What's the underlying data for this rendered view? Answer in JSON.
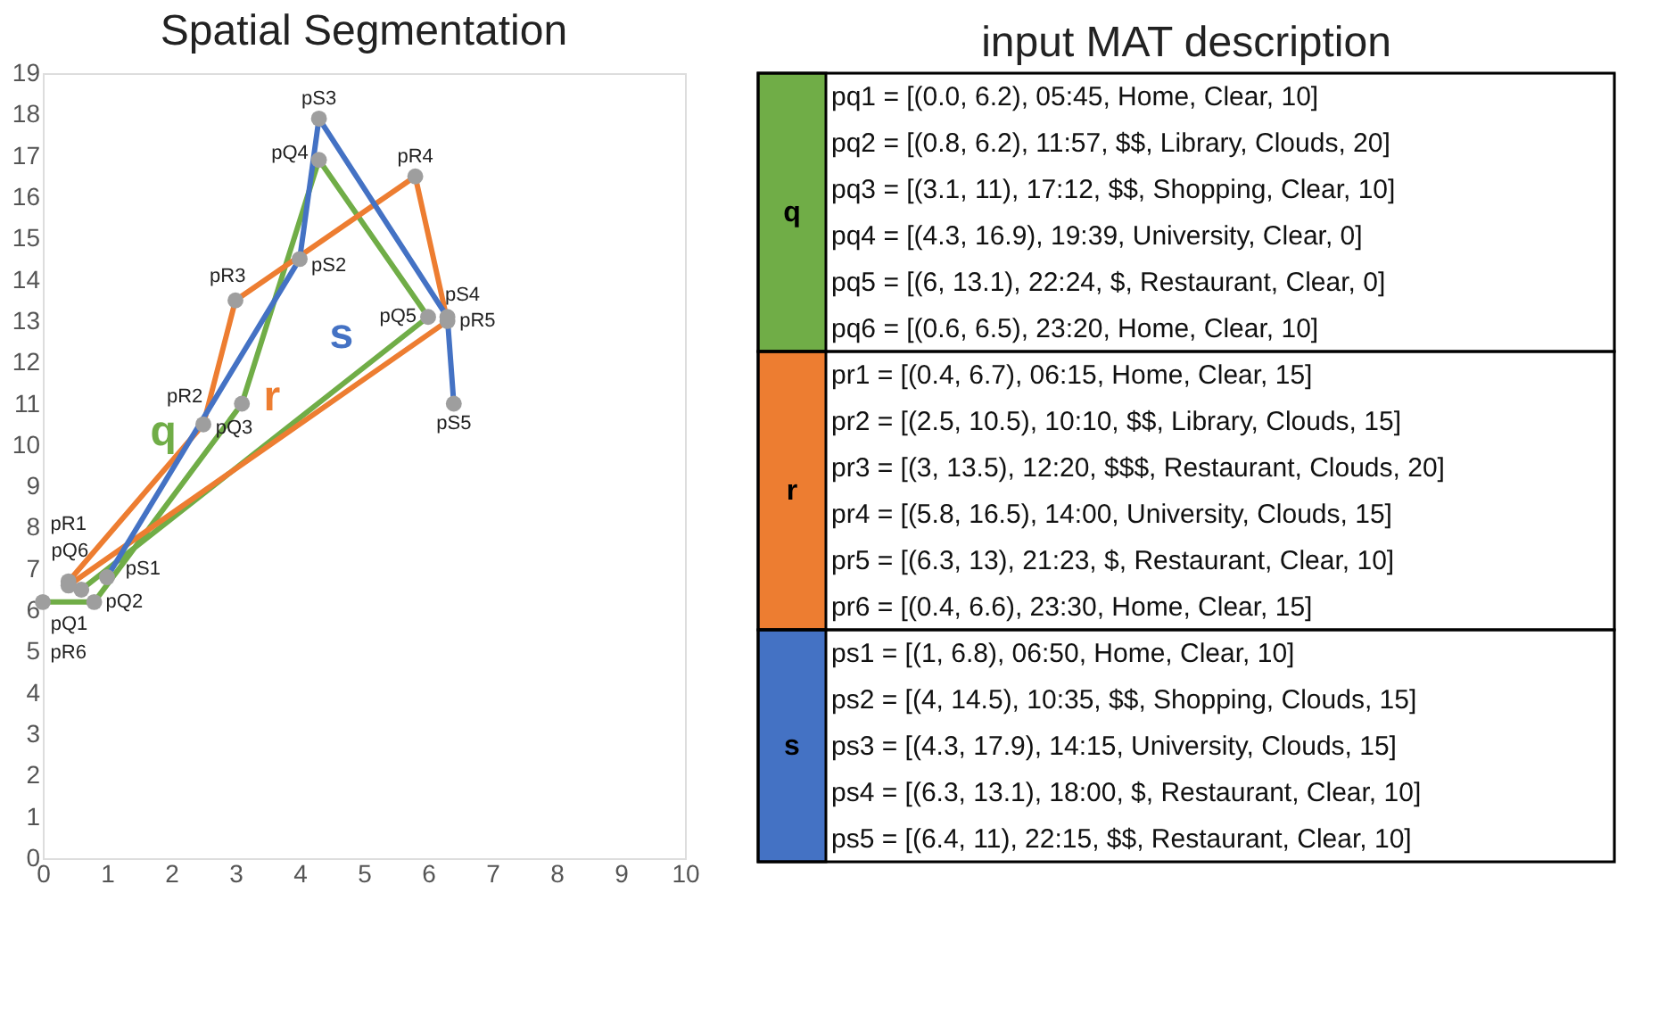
{
  "chart_data": [
    {
      "type": "line",
      "title": "Spatial Segmentation",
      "xlim": [
        0,
        10
      ],
      "xticks": [
        0,
        1,
        2,
        3,
        4,
        5,
        6,
        7,
        8,
        9,
        10
      ],
      "ylim": [
        0,
        19
      ],
      "yticks": [
        0,
        1,
        2,
        3,
        4,
        5,
        6,
        7,
        8,
        9,
        10,
        11,
        12,
        13,
        14,
        15,
        16,
        17,
        18,
        19
      ],
      "grid": false,
      "legend": false,
      "marker": "circle",
      "line_style": "solid",
      "series": [
        {
          "name": "q",
          "color": "#70ad47",
          "x": [
            0.0,
            0.8,
            3.1,
            4.3,
            6,
            0.6
          ],
          "values": [
            6.2,
            6.2,
            11,
            16.9,
            13.1,
            6.5
          ],
          "value_labels": [
            "pQ1",
            "pQ2",
            "pQ3",
            "pQ4",
            "pQ5",
            "pQ6"
          ]
        },
        {
          "name": "r",
          "color": "#ed7d31",
          "x": [
            0.4,
            2.5,
            3,
            5.8,
            6.3,
            0.4
          ],
          "values": [
            6.7,
            10.5,
            13.5,
            16.5,
            13,
            6.6
          ],
          "value_labels": [
            "pR1",
            "pR2",
            "pR3",
            "pR4",
            "pR5",
            "pR6"
          ]
        },
        {
          "name": "s",
          "color": "#4472c4",
          "x": [
            1,
            4,
            4.3,
            6.3,
            6.4
          ],
          "values": [
            6.8,
            14.5,
            17.9,
            13.1,
            11
          ],
          "value_labels": [
            "pS1",
            "pS2",
            "pS3",
            "pS4",
            "pS5"
          ]
        }
      ]
    },
    {
      "type": "other",
      "title": "input MAT description",
      "categories": [
        "q",
        "r",
        "s"
      ],
      "colors": [
        "#70ad47",
        "#ed7d31",
        "#4472c4"
      ],
      "annotations": [
        "pq1 = [(0.0, 6.2), 05:45, Home, Clear, 10]",
        "pq2 = [(0.8, 6.2), 11:57, $$, Library, Clouds, 20]",
        "pq3 = [(3.1, 11), 17:12, $$, Shopping, Clear, 10]",
        "pq4 = [(4.3, 16.9), 19:39, University, Clear, 0]",
        "pq5 = [(6, 13.1), 22:24, $, Restaurant, Clear, 0]",
        "pq6 = [(0.6, 6.5), 23:20, Home, Clear, 10]",
        "pr1 = [(0.4, 6.7), 06:15, Home, Clear, 15]",
        "pr2 = [(2.5, 10.5), 10:10, $$, Library, Clouds, 15]",
        "pr3 = [(3, 13.5), 12:20, $$$, Restaurant, Clouds, 20]",
        "pr4 = [(5.8, 16.5), 14:00, University, Clouds, 15]",
        "pr5 = [(6.3, 13), 21:23, $, Restaurant, Clear, 10]",
        "pr6 = [(0.4, 6.6), 23:30, Home, Clear, 15]",
        "ps1 = [(1, 6.8), 06:50, Home, Clear, 10]",
        "ps2 = [(4, 14.5), 10:35, $$, Shopping, Clouds, 15]",
        "ps3 = [(4.3, 17.9), 14:15, University, Clouds, 15]",
        "ps4 = [(6.3, 13.1), 18:00, $, Restaurant, Clear, 10]",
        "ps5 = [(6.4, 11), 22:15, $$, Restaurant, Clear, 10]"
      ]
    }
  ]
}
